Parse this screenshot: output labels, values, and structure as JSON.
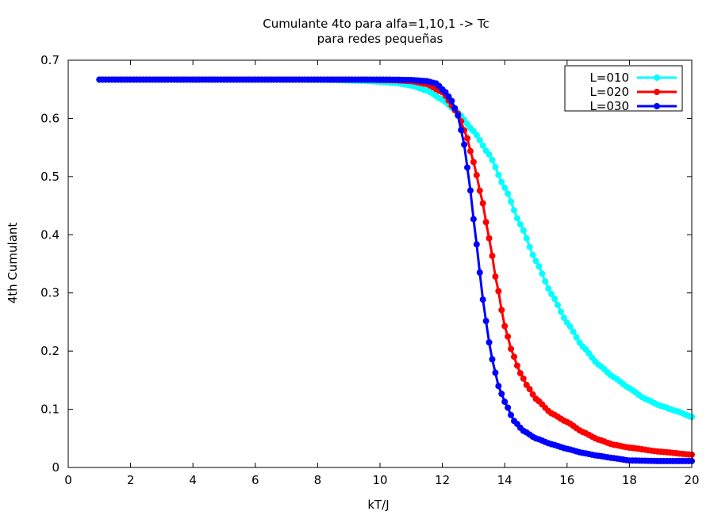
{
  "chart_data": {
    "type": "line",
    "title": "Cumulante 4to para alfa=1,10,1 -> Tc",
    "subtitle": "para redes pequeñas",
    "xlabel": "kT/J",
    "ylabel": "4th Cumulant",
    "xlim": [
      0,
      20
    ],
    "ylim": [
      0,
      0.7
    ],
    "x_ticks": [
      "0",
      "2",
      "4",
      "6",
      "8",
      "10",
      "12",
      "14",
      "16",
      "18",
      "20"
    ],
    "y_ticks": [
      "0",
      "0.1",
      "0.2",
      "0.3",
      "0.4",
      "0.5",
      "0.6",
      "0.7"
    ],
    "grid": false,
    "legend_position": "top-right",
    "series": [
      {
        "name": "L=010",
        "color": "#00ffff",
        "points": [
          [
            1.0,
            0.6667
          ],
          [
            6.0,
            0.6667
          ],
          [
            7.5,
            0.6665
          ],
          [
            8.5,
            0.666
          ],
          [
            9.5,
            0.6645
          ],
          [
            10.5,
            0.661
          ],
          [
            11.0,
            0.6565
          ],
          [
            11.5,
            0.648
          ],
          [
            12.0,
            0.632
          ],
          [
            12.5,
            0.61
          ],
          [
            13.0,
            0.578
          ],
          [
            13.5,
            0.538
          ],
          [
            14.0,
            0.481
          ],
          [
            14.5,
            0.418
          ],
          [
            15.0,
            0.355
          ],
          [
            15.5,
            0.298
          ],
          [
            16.0,
            0.249
          ],
          [
            16.5,
            0.208
          ],
          [
            17.0,
            0.177
          ],
          [
            17.5,
            0.155
          ],
          [
            18.0,
            0.136
          ],
          [
            18.5,
            0.118
          ],
          [
            19.0,
            0.106
          ],
          [
            19.5,
            0.097
          ],
          [
            20.0,
            0.087
          ]
        ]
      },
      {
        "name": "L=020",
        "color": "#ff0000",
        "points": [
          [
            1.0,
            0.6667
          ],
          [
            8.0,
            0.6667
          ],
          [
            9.5,
            0.6665
          ],
          [
            10.5,
            0.6655
          ],
          [
            11.0,
            0.664
          ],
          [
            11.5,
            0.659
          ],
          [
            12.0,
            0.645
          ],
          [
            12.5,
            0.608
          ],
          [
            12.75,
            0.574
          ],
          [
            13.0,
            0.525
          ],
          [
            13.25,
            0.466
          ],
          [
            13.5,
            0.394
          ],
          [
            13.75,
            0.315
          ],
          [
            14.0,
            0.243
          ],
          [
            14.25,
            0.196
          ],
          [
            14.5,
            0.162
          ],
          [
            14.75,
            0.138
          ],
          [
            15.0,
            0.118
          ],
          [
            15.5,
            0.093
          ],
          [
            16.0,
            0.078
          ],
          [
            16.5,
            0.061
          ],
          [
            17.0,
            0.048
          ],
          [
            17.5,
            0.039
          ],
          [
            18.0,
            0.034
          ],
          [
            19.0,
            0.027
          ],
          [
            20.0,
            0.022
          ]
        ]
      },
      {
        "name": "L=030",
        "color": "#0000ff",
        "points": [
          [
            1.0,
            0.6667
          ],
          [
            9.8,
            0.6667
          ],
          [
            10.5,
            0.6665
          ],
          [
            11.0,
            0.666
          ],
          [
            11.5,
            0.664
          ],
          [
            11.8,
            0.66
          ],
          [
            12.1,
            0.645
          ],
          [
            12.3,
            0.63
          ],
          [
            12.5,
            0.605
          ],
          [
            12.7,
            0.555
          ],
          [
            12.9,
            0.476
          ],
          [
            13.05,
            0.405
          ],
          [
            13.2,
            0.335
          ],
          [
            13.35,
            0.268
          ],
          [
            13.5,
            0.215
          ],
          [
            13.65,
            0.173
          ],
          [
            13.8,
            0.14
          ],
          [
            14.0,
            0.113
          ],
          [
            14.3,
            0.08
          ],
          [
            14.6,
            0.063
          ],
          [
            15.0,
            0.05
          ],
          [
            15.5,
            0.04
          ],
          [
            16.0,
            0.032
          ],
          [
            16.5,
            0.025
          ],
          [
            17.0,
            0.02
          ],
          [
            17.5,
            0.016
          ],
          [
            18.0,
            0.012
          ],
          [
            19.0,
            0.011
          ],
          [
            20.0,
            0.011
          ]
        ]
      }
    ]
  }
}
